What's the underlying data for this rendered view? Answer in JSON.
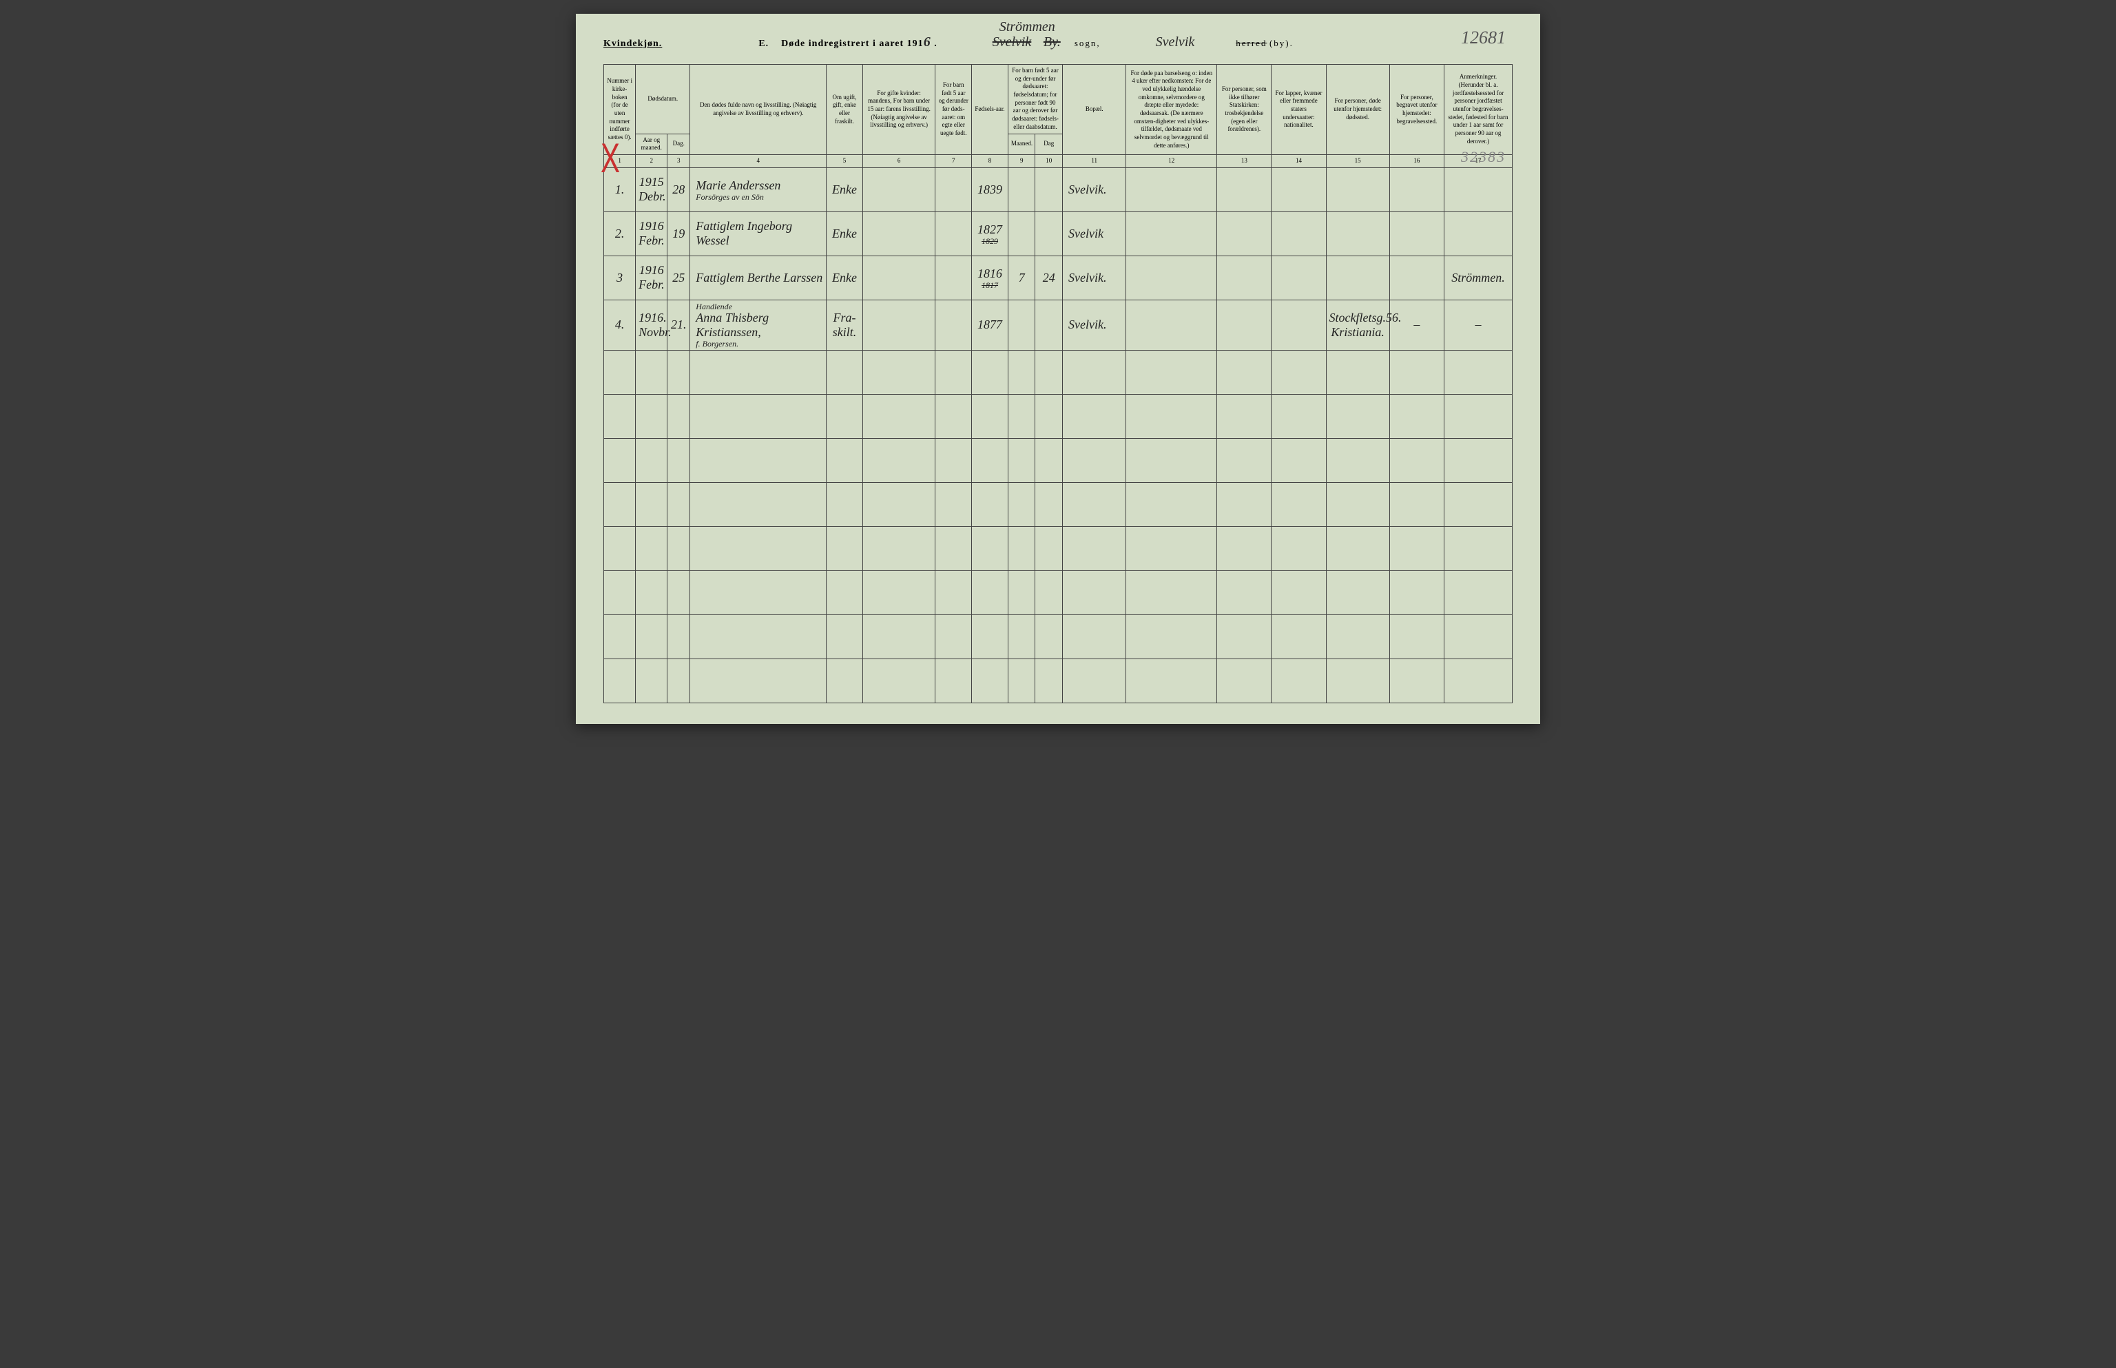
{
  "header": {
    "gender_label": "Kvindekjøn.",
    "title_prefix": "E.",
    "title_main": "Døde indregistrert i aaret 191",
    "year_suffix": "6",
    "sogn_top_handwritten": "Strömmen",
    "sogn_strike": "Svelvik",
    "sogn_by_strike": "By.",
    "sogn_label": "sogn,",
    "herred_handwritten": "Svelvik",
    "herred_strike": "herred",
    "herred_suffix": "(by).",
    "page_number": "12681",
    "secondary_number": "32383"
  },
  "columns": {
    "c1": "Nummer i kirke-boken (for de uten nummer indførte sættes 0).",
    "c2": "Dødsdatum.",
    "c2a": "Aar og maaned.",
    "c2b": "Dag.",
    "c4": "Den dødes fulde navn og livsstilling. (Nøiagtig angivelse av livsstilling og erhverv).",
    "c5": "Om ugift, gift, enke eller fraskilt.",
    "c6": "For gifte kvinder: mandens, For barn under 15 aar: farens livsstilling. (Nøiagtig angivelse av livsstilling og erhverv.)",
    "c7": "For barn født 5 aar og derunder før døds-aaret: om egte eller uegte født.",
    "c8": "Fødsels-aar.",
    "c9_10": "For barn født 5 aar og der-under før dødsaaret: fødselsdatum; for personer født 90 aar og derover før dødsaaret: fødsels- eller daabsdatum.",
    "c9": "Maaned.",
    "c10": "Dag",
    "c11": "Bopæl.",
    "c12": "For døde paa barselseng o: inden 4 uker efter nedkomsten: For de ved ulykkelig hændelse omkomne, selvmordere og dræpte eller myrdede: dødsaarsak. (De nærmere omstæn-digheter ved ulykkes-tilfældet, dødsmaate ved selvmordet og bevæggrund til dette anføres.)",
    "c13": "For personer, som ikke tilhører Statskirken: trosbekjendelse (egen eller forældrenes).",
    "c14": "For lapper, kvæner eller fremmede staters undersaatter: nationalitet.",
    "c15": "For personer, døde utenfor hjemstedet: dødssted.",
    "c16": "For personer, begravet utenfor hjemstedet: begravelsessted.",
    "c17": "Anmerkninger. (Herunder bl. a. jordfæstelsessted for personer jordfæstet utenfor begravelses-stedet, fødested for barn under 1 aar samt for personer 90 aar og derover.)"
  },
  "col_numbers": [
    "1",
    "2",
    "3",
    "4",
    "5",
    "6",
    "7",
    "8",
    "9",
    "10",
    "11",
    "12",
    "13",
    "14",
    "15",
    "16",
    "17"
  ],
  "rows": [
    {
      "num": "1.",
      "year_month": "1915 Debr.",
      "day": "28",
      "name": "Marie Anderssen",
      "name_sub": "Forsörges av en Sön",
      "status": "Enke",
      "col6": "",
      "col7": "",
      "birth_year": "1839",
      "col9": "",
      "col10": "",
      "bopael": "Svelvik.",
      "col12": "",
      "col13": "",
      "col14": "",
      "col15": "",
      "col16": "",
      "col17": ""
    },
    {
      "num": "2.",
      "year_month": "1916 Febr.",
      "day": "19",
      "name": "Fattiglem Ingeborg Wessel",
      "name_sub": "",
      "status": "Enke",
      "col6": "",
      "col7": "",
      "birth_year": "1827",
      "birth_year_strike": "1829",
      "col9": "",
      "col10": "",
      "bopael": "Svelvik",
      "col12": "",
      "col13": "",
      "col14": "",
      "col15": "",
      "col16": "",
      "col17": ""
    },
    {
      "num": "3",
      "year_month": "1916 Febr.",
      "day": "25",
      "name": "Fattiglem Berthe Larssen",
      "name_sub": "",
      "status": "Enke",
      "col6": "",
      "col7": "",
      "birth_year": "1816",
      "birth_year_strike": "1817",
      "col9": "7",
      "col10": "24",
      "bopael": "Svelvik.",
      "col12": "",
      "col13": "",
      "col14": "",
      "col15": "",
      "col16": "",
      "col17": "Strömmen."
    },
    {
      "num": "4.",
      "year_month": "1916. Novbr.",
      "day": "21.",
      "name": "Anna Thisberg Kristianssen,",
      "name_top": "Handlende",
      "name_sub": "f. Borgersen.",
      "status": "Fra-skilt.",
      "col6": "",
      "col7": "",
      "birth_year": "1877",
      "col9": "",
      "col10": "",
      "bopael": "Svelvik.",
      "col12": "",
      "col13": "",
      "col14": "",
      "col15": "Stockfletsg.56. Kristiania.",
      "col16": "–",
      "col17": "–"
    }
  ],
  "empty_rows": 8,
  "styles": {
    "page_bg": "#d4ddc7",
    "border_color": "#444444",
    "red_x_color": "#c93030",
    "handwriting_color": "#222222"
  }
}
